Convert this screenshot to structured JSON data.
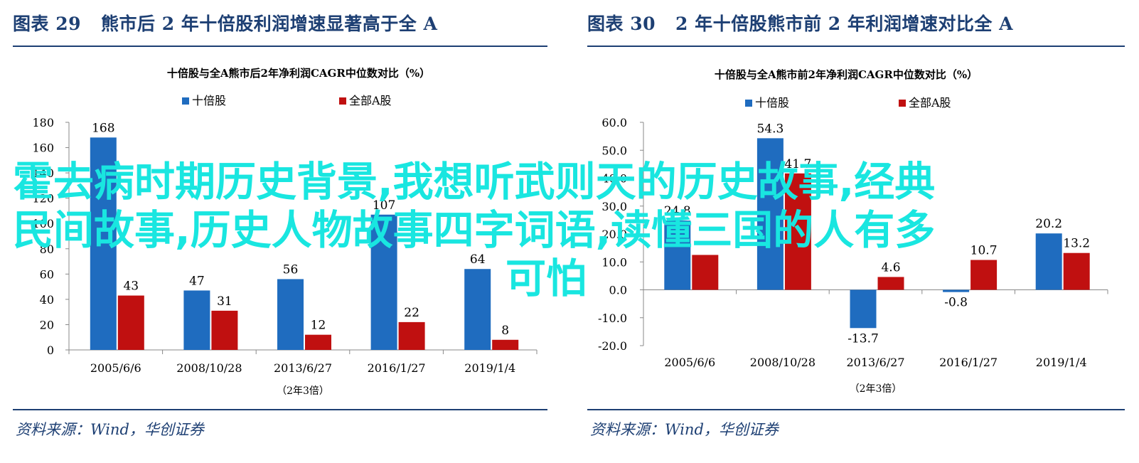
{
  "colors": {
    "series_a": "#1f6cbf",
    "series_b": "#c01010",
    "heading": "#1d3f73",
    "watermark": "#19e6e0"
  },
  "panels": [
    {
      "figure_number": "图表 29",
      "figure_title": "熊市后 2 年十倍股利润增速显著高于全 A",
      "source": "资料来源：Wind，华创证券"
    },
    {
      "figure_number": "图表 30",
      "figure_title": "2 年十倍股熊市前 2 年利润增速对比全 A",
      "source": "资料来源：Wind，华创证券"
    }
  ],
  "watermark": {
    "line1": "霍去病时期历史背景,我想听武则天的历史故事,经典",
    "line2": "民间故事,历史人物故事四字词语,读懂三国的人有多",
    "line3": "可怕"
  },
  "chart_data": [
    {
      "type": "bar",
      "title": "十倍股与全A熊市后2年净利润CAGR中位数对比（%）",
      "xlabel": "（2年3倍）",
      "ylabel": "",
      "categories": [
        "2005/6/6",
        "2008/10/28",
        "2013/6/27",
        "2016/1/27",
        "2019/1/4"
      ],
      "series": [
        {
          "name": "十倍股",
          "values": [
            168,
            47,
            56,
            107,
            64
          ]
        },
        {
          "name": "全部A股",
          "values": [
            43,
            31,
            12,
            22,
            8
          ]
        }
      ],
      "data_labels_a": [
        "168",
        "47",
        "56",
        "107",
        "64"
      ],
      "data_labels_b": [
        "43",
        "31",
        "12",
        "22",
        "8"
      ],
      "ylim": [
        0,
        180
      ],
      "yticks": [
        0,
        20,
        40,
        60,
        80,
        100,
        120,
        140,
        160,
        180
      ],
      "ytick_labels": [
        "0",
        "20",
        "40",
        "60",
        "80",
        "100",
        "120",
        "140",
        "160",
        "180"
      ],
      "grid": false,
      "legend_position": "top-center"
    },
    {
      "type": "bar",
      "title": "十倍股与全A熊市前2年净利润CAGR中位数对比（%）",
      "xlabel": "（2年3倍）",
      "ylabel": "",
      "categories": [
        "2005/6/6",
        "2008/10/28",
        "2013/6/27",
        "2016/1/27",
        "2019/1/4"
      ],
      "series": [
        {
          "name": "十倍股",
          "values": [
            24.8,
            54.3,
            -13.7,
            -0.8,
            20.2
          ]
        },
        {
          "name": "全部A股",
          "values": [
            12.5,
            41.7,
            4.6,
            10.7,
            13.2
          ]
        }
      ],
      "data_labels_a": [
        "24.8",
        "54.3",
        "-13.7",
        "-0.8",
        "20.2"
      ],
      "data_labels_b": [
        "",
        "41.7",
        "4.6",
        "10.7",
        "13.2"
      ],
      "ylim": [
        -20,
        60
      ],
      "yticks": [
        -20,
        -10,
        0,
        10,
        20,
        30,
        40,
        50,
        60
      ],
      "ytick_labels": [
        "-20.0",
        "-10.0",
        "0.0",
        "10.0",
        "20.0",
        "30.0",
        "40.0",
        "50.0",
        "60.0"
      ],
      "grid": false,
      "legend_position": "top-center"
    }
  ]
}
